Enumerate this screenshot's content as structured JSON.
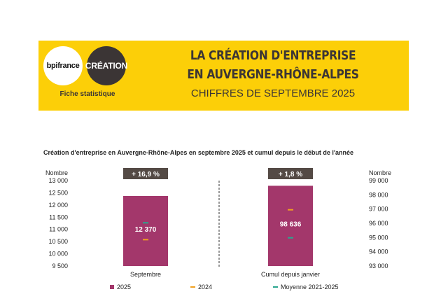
{
  "header": {
    "logo_bpi": "bpifrance",
    "logo_creation": "CRÉATION",
    "fiche": "Fiche statistique",
    "title_line1": "LA CRÉATION D'ENTREPRISE",
    "title_line2": "EN AUVERGNE-RHÔNE-ALPES",
    "subtitle": "CHIFFRES DE SEPTEMBRE 2025",
    "banner_color": "#fccf08"
  },
  "chart_data": {
    "type": "bar",
    "title": "Création d'entreprise en Auvergne-Rhône-Alpes en septembre 2025 et cumul depuis le début de l'année",
    "left_axis": {
      "label": "Nombre",
      "range": [
        9500,
        13000
      ],
      "ticks": [
        "13 000",
        "12 500",
        "12 000",
        "11 500",
        "11 000",
        "10 500",
        "10 000",
        "9 500"
      ]
    },
    "right_axis": {
      "label": "Nombre",
      "range": [
        93000,
        99000
      ],
      "ticks": [
        "99 000",
        "98 000",
        "97 000",
        "96 000",
        "95 000",
        "94 000",
        "93 000"
      ]
    },
    "categories": [
      "Septembre",
      "Cumul depuis janvier"
    ],
    "series": [
      {
        "name": "2025",
        "color": "#a3376b",
        "values": [
          12370,
          98636
        ],
        "labels": [
          "12 370",
          "98 636"
        ]
      },
      {
        "name": "2024",
        "color": "#f0a020",
        "values": [
          10580,
          96950
        ]
      },
      {
        "name": "Moyenne 2021-2025",
        "color": "#2aa58e",
        "values": [
          11270,
          94980
        ]
      }
    ],
    "variations": [
      "+ 16,9 %",
      "+ 1,8 %"
    ],
    "legend_position": "bottom"
  }
}
